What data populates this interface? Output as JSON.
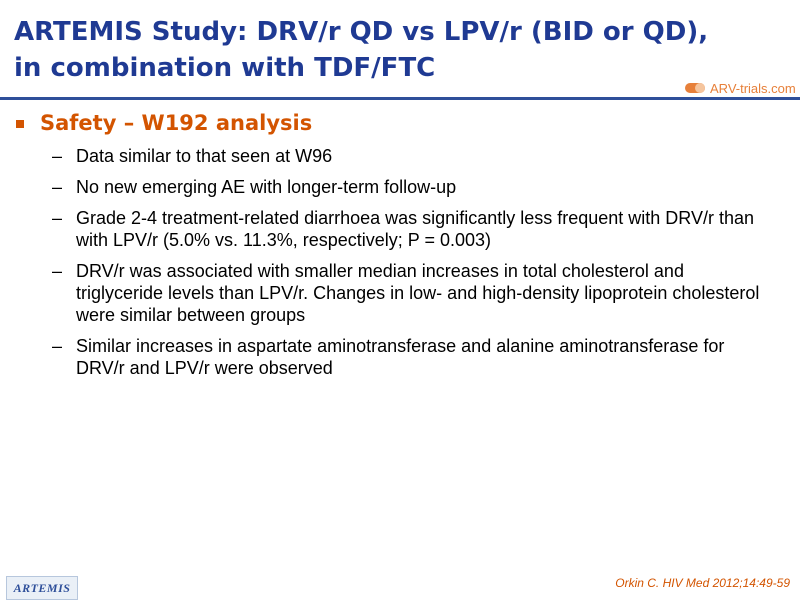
{
  "title": {
    "line1": "ARTEMIS Study: DRV/r QD vs LPV/r (BID or QD),",
    "line2": "in combination with TDF/FTC"
  },
  "logo": {
    "text": "ARV-trials.com",
    "icon": "pill-capsule-icon"
  },
  "section": {
    "bullet_icon": "square-bullet-icon",
    "title": "Safety – W192 analysis",
    "items": [
      "Data similar to that seen at W96",
      "No new emerging AE with longer-term follow-up",
      "Grade 2-4 treatment-related diarrhoea was significantly less frequent with DRV/r than with LPV/r (5.0% vs. 11.3%, respectively; P = 0.003)",
      "DRV/r was associated with smaller median increases in total cholesterol and triglyceride levels than LPV/r. Changes in low- and high-density lipoprotein cholesterol were similar between groups",
      "Similar increases in aspartate aminotransferase and alanine aminotransferase for DRV/r and LPV/r were observed"
    ]
  },
  "footer": {
    "badge": "ARTEMIS",
    "reference": "Orkin C. HIV Med 2012;14:49-59"
  },
  "colors": {
    "title": "#1F3A93",
    "accent": "#D35400",
    "logo": "#E7803A"
  }
}
